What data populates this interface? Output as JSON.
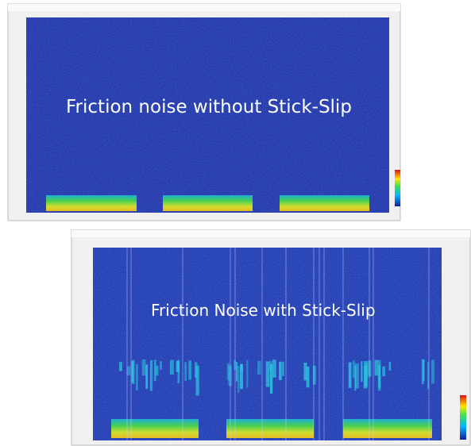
{
  "panels": [
    {
      "label": "Friction noise without Stick-Slip"
    },
    {
      "label": "Friction Noise with Stick-Slip"
    }
  ]
}
